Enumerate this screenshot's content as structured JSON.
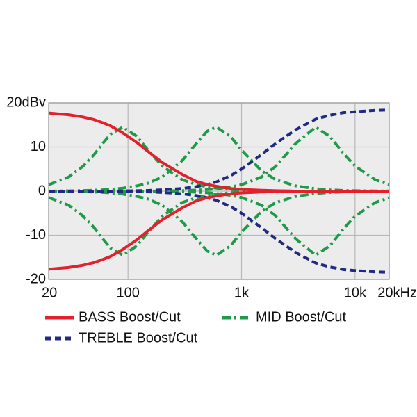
{
  "chart_data": {
    "type": "line",
    "xscale": "log",
    "x": [
      20,
      30,
      40,
      50,
      60,
      70,
      90,
      120,
      150,
      200,
      300,
      400,
      500,
      600,
      800,
      1000,
      1500,
      2000,
      3000,
      4500,
      6000,
      8000,
      10000,
      15000,
      20000
    ],
    "xlim": [
      20,
      20000
    ],
    "xticks": [
      20,
      100,
      {
        "value": 1000,
        "label": "1k"
      },
      {
        "value": 10000,
        "label": "10k"
      },
      {
        "value": 20000,
        "label": "20kHz"
      }
    ],
    "ylim": [
      -20,
      20
    ],
    "yticks": [
      {
        "value": 20,
        "label": "20dBv"
      },
      10,
      0,
      -10,
      -20
    ],
    "grid": true,
    "series": [
      {
        "name": "BASS Boost/Cut",
        "color": "#e3202b",
        "dash": "solid",
        "curves": [
          [
            17.7,
            17.3,
            16.8,
            16.2,
            15.5,
            14.8,
            13.2,
            11.0,
            9.0,
            6.5,
            3.8,
            2.2,
            1.5,
            1.1,
            0.6,
            0.4,
            0.2,
            0.1,
            0,
            0,
            0,
            0,
            0,
            0,
            0
          ],
          [
            -17.7,
            -17.3,
            -16.8,
            -16.2,
            -15.5,
            -14.8,
            -13.2,
            -11.0,
            -9.0,
            -6.5,
            -3.8,
            -2.2,
            -1.5,
            -1.1,
            -0.6,
            -0.4,
            -0.2,
            -0.1,
            0,
            0,
            0,
            0,
            0,
            0,
            0
          ]
        ]
      },
      {
        "name": "MID Boost/Cut",
        "color": "#1f9a48",
        "dash": "12,5,3,5",
        "curves": [
          [
            1.45,
            3.2,
            5.6,
            8.2,
            10.8,
            12.9,
            14.5,
            12.4,
            9.3,
            5.7,
            2.6,
            1.5,
            0.95,
            0.67,
            0.37,
            0.24,
            0.1,
            0.06,
            0,
            0,
            0,
            0,
            0,
            0,
            0
          ],
          [
            -1.45,
            -3.2,
            -5.6,
            -8.2,
            -10.8,
            -12.9,
            -14.5,
            -12.4,
            -9.3,
            -5.7,
            -2.6,
            -1.5,
            -0.95,
            -0.67,
            -0.37,
            -0.24,
            -0.1,
            -0.06,
            0,
            0,
            0,
            0,
            0,
            0,
            0
          ],
          [
            0,
            0.07,
            0.13,
            0.2,
            0.3,
            0.4,
            0.67,
            1.2,
            1.8,
            3.2,
            6.9,
            10.8,
            13.6,
            14.5,
            12.4,
            9.3,
            4.6,
            2.6,
            1.2,
            0.53,
            0.3,
            0.16,
            0.1,
            0.05,
            0.03
          ],
          [
            0,
            -0.07,
            -0.13,
            -0.2,
            -0.3,
            -0.4,
            -0.67,
            -1.2,
            -1.8,
            -3.2,
            -6.9,
            -10.8,
            -13.6,
            -14.5,
            -12.4,
            -9.3,
            -4.6,
            -2.6,
            -1.2,
            -0.53,
            -0.3,
            -0.16,
            -0.1,
            -0.05,
            -0.03
          ],
          [
            0,
            0,
            0,
            0,
            0,
            0,
            0,
            0,
            0,
            0.05,
            0.1,
            0.23,
            0.37,
            0.53,
            0.94,
            1.45,
            3.2,
            5.6,
            10.8,
            14.5,
            12.4,
            8.4,
            5.7,
            2.6,
            1.5
          ],
          [
            0,
            0,
            0,
            0,
            0,
            0,
            0,
            0,
            0,
            -0.05,
            -0.1,
            -0.23,
            -0.37,
            -0.53,
            -0.94,
            -1.45,
            -3.2,
            -5.6,
            -10.8,
            -14.5,
            -12.4,
            -8.4,
            -5.7,
            -2.6,
            -1.5
          ]
        ]
      },
      {
        "name": "TREBLE Boost/Cut",
        "color": "#1f2a80",
        "dash": "9,5",
        "curves": [
          [
            0,
            0,
            0,
            0,
            0,
            0,
            0.05,
            0.1,
            0.15,
            0.3,
            0.6,
            1.0,
            1.5,
            2.1,
            3.5,
            5.0,
            8.3,
            10.8,
            13.9,
            16.3,
            17.2,
            17.8,
            18.0,
            18.3,
            18.4
          ],
          [
            0,
            0,
            0,
            0,
            0,
            0,
            -0.05,
            -0.1,
            -0.15,
            -0.3,
            -0.6,
            -1.0,
            -1.5,
            -2.1,
            -3.5,
            -5.0,
            -8.3,
            -10.8,
            -13.9,
            -16.3,
            -17.2,
            -17.8,
            -18.0,
            -18.3,
            -18.4
          ]
        ]
      }
    ]
  }
}
